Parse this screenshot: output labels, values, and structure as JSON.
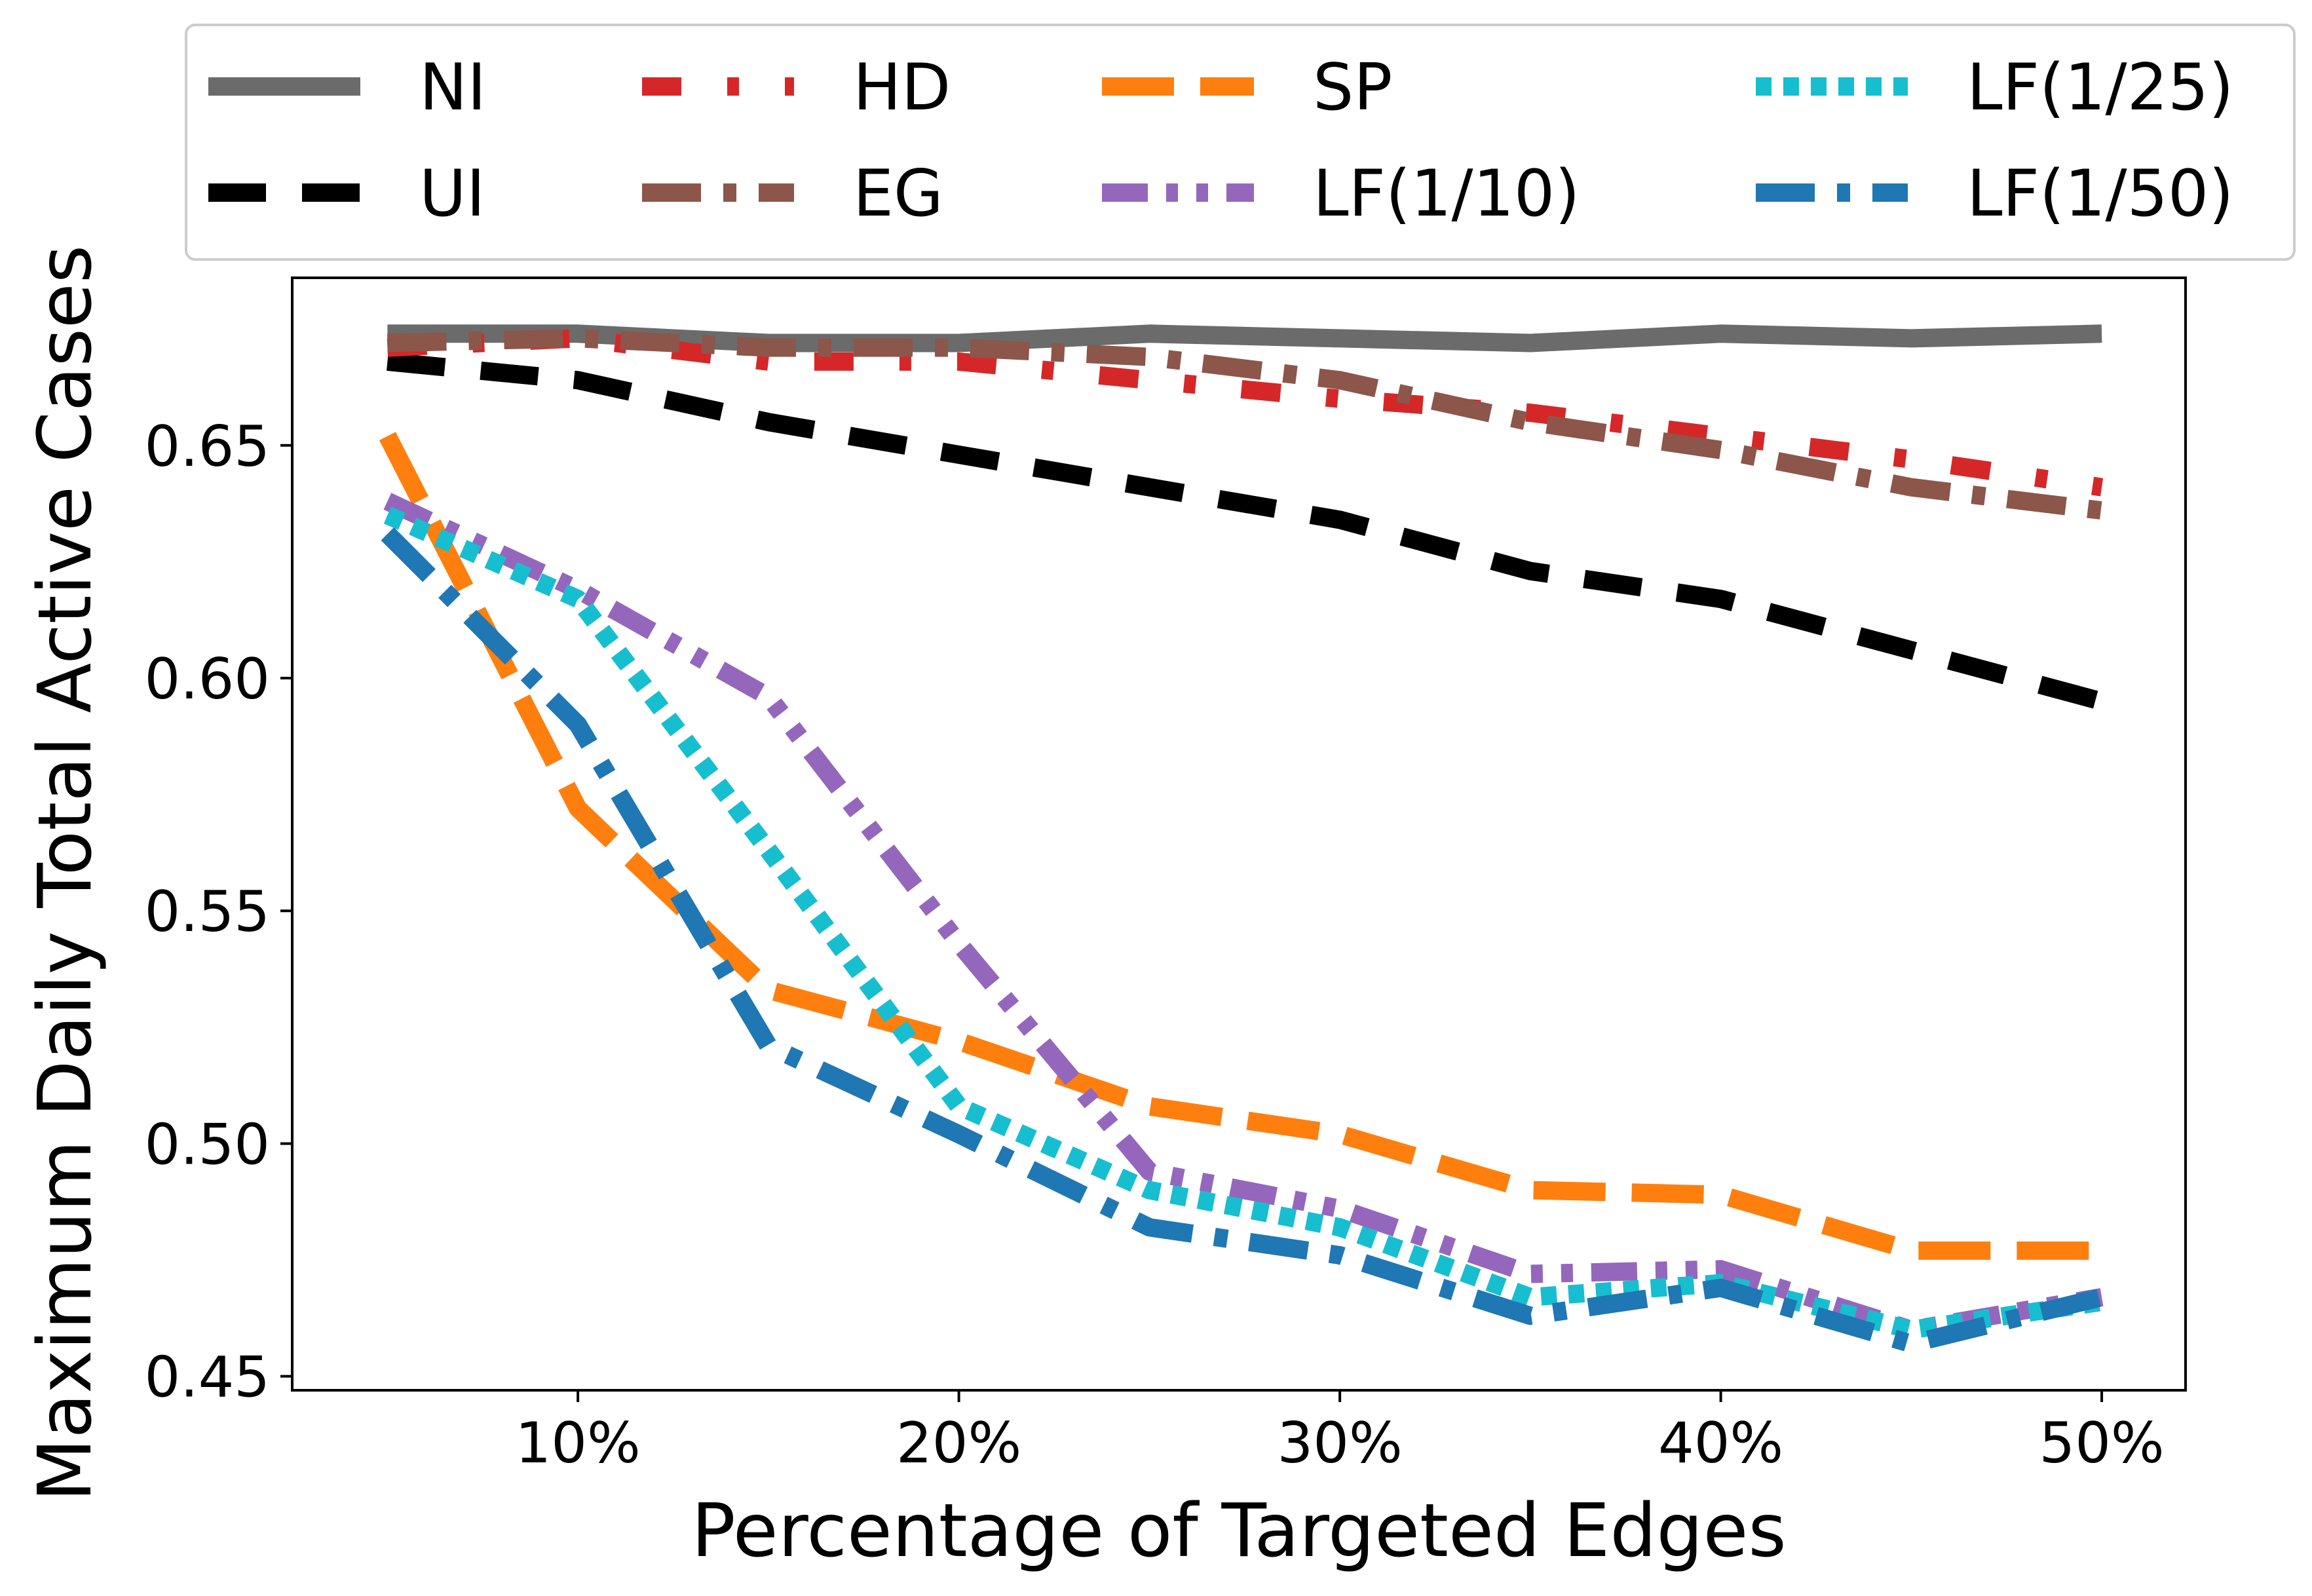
{
  "chart_data": {
    "type": "line",
    "xlabel": "Percentage of Targeted Edges",
    "ylabel": "Maximum Daily Total Active Cases",
    "x": [
      5,
      10,
      15,
      20,
      25,
      30,
      35,
      40,
      45,
      50
    ],
    "xlim": [
      2.5,
      52.2
    ],
    "ylim": [
      0.447,
      0.686
    ],
    "xticks": [
      10,
      20,
      30,
      40,
      50
    ],
    "xtick_labels": [
      "10%",
      "20%",
      "30%",
      "40%",
      "50%"
    ],
    "yticks": [
      0.45,
      0.5,
      0.55,
      0.6,
      0.65
    ],
    "ytick_labels": [
      "0.45",
      "0.50",
      "0.55",
      "0.60",
      "0.65"
    ],
    "grid": false,
    "legend_position": "top, above plot, 4 columns",
    "series": [
      {
        "name": "NI",
        "color": "#6b6b6b",
        "dash": "solid",
        "values": [
          0.674,
          0.674,
          0.672,
          0.672,
          0.674,
          0.673,
          0.672,
          0.674,
          0.673,
          0.674
        ]
      },
      {
        "name": "UI",
        "color": "#000000",
        "dash": "dashed",
        "values": [
          0.668,
          0.664,
          0.655,
          0.648,
          0.641,
          0.634,
          0.623,
          0.617,
          0.606,
          0.595
        ]
      },
      {
        "name": "HD",
        "color": "#d62728",
        "dash": "dash-dot-sparse",
        "values": [
          0.671,
          0.673,
          0.668,
          0.668,
          0.664,
          0.66,
          0.657,
          0.652,
          0.647,
          0.641
        ]
      },
      {
        "name": "EG",
        "color": "#8c564b",
        "dash": "dashdot",
        "values": [
          0.672,
          0.673,
          0.671,
          0.671,
          0.669,
          0.664,
          0.655,
          0.649,
          0.641,
          0.636
        ]
      },
      {
        "name": "SP",
        "color": "#ff7f0e",
        "dash": "long-dashed",
        "values": [
          0.652,
          0.572,
          0.533,
          0.522,
          0.508,
          0.502,
          0.49,
          0.489,
          0.477,
          0.477
        ]
      },
      {
        "name": "LF(1/10)",
        "color": "#9467bd",
        "dash": "dash-dot-dot",
        "values": [
          0.638,
          0.619,
          0.596,
          0.543,
          0.494,
          0.486,
          0.472,
          0.473,
          0.46,
          0.467
        ]
      },
      {
        "name": "LF(1/25)",
        "color": "#17becf",
        "dash": "dotted",
        "values": [
          0.635,
          0.617,
          0.563,
          0.508,
          0.49,
          0.482,
          0.467,
          0.47,
          0.46,
          0.466
        ]
      },
      {
        "name": "LF(1/50)",
        "color": "#1f77b4",
        "dash": "dashdot",
        "values": [
          0.631,
          0.59,
          0.521,
          0.502,
          0.482,
          0.476,
          0.463,
          0.469,
          0.457,
          0.467
        ]
      }
    ]
  }
}
